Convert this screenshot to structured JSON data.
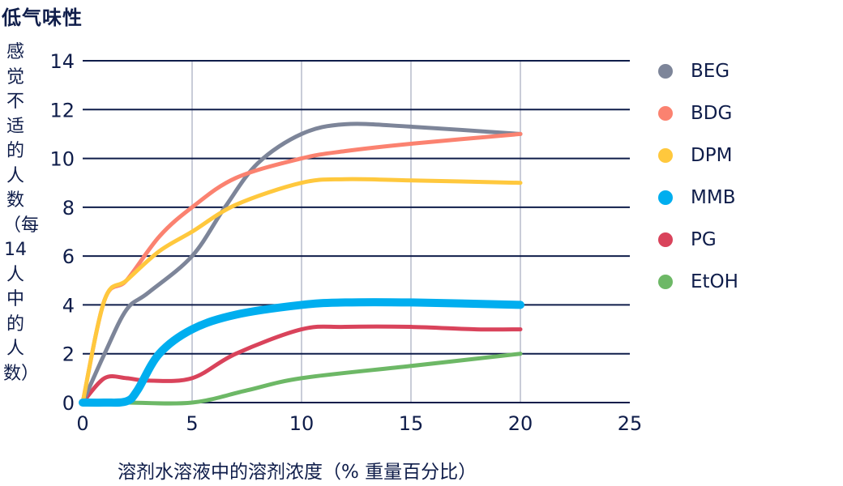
{
  "chart_data": {
    "type": "line",
    "title": "低气味性",
    "xlabel": "溶剂水溶液中的溶剂浓度（% 重量百分比）",
    "ylabel": "感觉不适的人数（每14人中的人数）",
    "xlim": [
      0,
      25
    ],
    "ylim": [
      0,
      14
    ],
    "x_ticks": [
      "0",
      "5",
      "10",
      "15",
      "20",
      "25"
    ],
    "y_ticks": [
      "0",
      "2",
      "4",
      "6",
      "8",
      "10",
      "12",
      "14"
    ],
    "grid": {
      "horizontal": true,
      "vertical": true
    },
    "legend_position": "right",
    "series": [
      {
        "name": "BEG",
        "color": "#7d8599",
        "width": 5,
        "x": [
          0,
          1,
          2,
          3,
          5,
          6.5,
          8,
          10,
          12,
          15,
          20
        ],
        "y": [
          0,
          2,
          3.8,
          4.5,
          6,
          8,
          9.8,
          11,
          11.4,
          11.3,
          11
        ]
      },
      {
        "name": "BDG",
        "color": "#fb8270",
        "width": 5,
        "x": [
          0,
          1,
          2,
          3.5,
          5,
          7,
          10,
          12,
          15,
          20
        ],
        "y": [
          0,
          4.2,
          5,
          6.8,
          8,
          9.2,
          10,
          10.3,
          10.6,
          11
        ]
      },
      {
        "name": "DPM",
        "color": "#ffc83d",
        "width": 5,
        "x": [
          0,
          1,
          2,
          3.5,
          5,
          7,
          10,
          12,
          15,
          20
        ],
        "y": [
          0,
          4.2,
          5,
          6.2,
          7,
          8.1,
          9,
          9.15,
          9.1,
          9
        ]
      },
      {
        "name": "MMB",
        "color": "#00aeef",
        "width": 10,
        "x": [
          0,
          1,
          2,
          2.5,
          3.5,
          5,
          7,
          10,
          12,
          15,
          20
        ],
        "y": [
          0,
          0,
          0.05,
          0.5,
          2,
          3,
          3.6,
          4,
          4.1,
          4.1,
          4
        ]
      },
      {
        "name": "PG",
        "color": "#d9435b",
        "width": 5,
        "x": [
          0,
          1,
          2,
          3,
          5,
          7,
          10,
          12,
          15,
          18,
          20
        ],
        "y": [
          0,
          1,
          1,
          0.9,
          1,
          2,
          3,
          3.1,
          3.1,
          3,
          3
        ]
      },
      {
        "name": "EtOH",
        "color": "#6db866",
        "width": 5,
        "x": [
          0,
          2,
          5,
          7.5,
          10,
          15,
          20
        ],
        "y": [
          0,
          0,
          0,
          0.5,
          1,
          1.5,
          2
        ]
      }
    ]
  },
  "ui": {
    "title": "低气味性",
    "ylabel": "感觉不适的人数（每14人中的人数）",
    "xlabel": "溶剂水溶液中的溶剂浓度（% 重量百分比）",
    "legend": [
      {
        "label": "BEG",
        "color": "#7d8599"
      },
      {
        "label": "BDG",
        "color": "#fb8270"
      },
      {
        "label": "DPM",
        "color": "#ffc83d"
      },
      {
        "label": "MMB",
        "color": "#00aeef"
      },
      {
        "label": "PG",
        "color": "#d9435b"
      },
      {
        "label": "EtOH",
        "color": "#6db866"
      }
    ],
    "colors": {
      "text": "#0f1d4a",
      "hgrid": "#0f1d4a",
      "vgrid": "#c9ccd8"
    }
  }
}
